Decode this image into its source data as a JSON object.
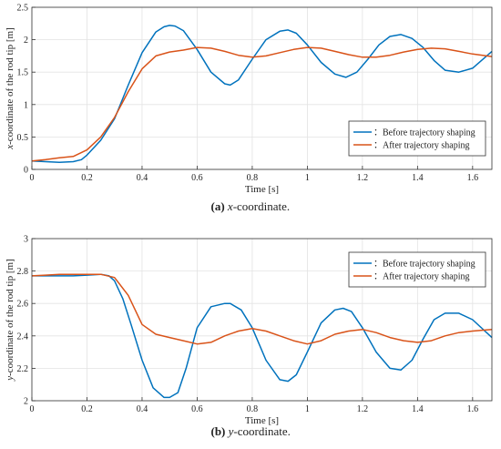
{
  "chart_data": [
    {
      "type": "line",
      "caption": {
        "tag": "(a)",
        "var": "x",
        "rest": "-coordinate."
      },
      "xlabel": "Time [s]",
      "ylabel_var": "x",
      "ylabel_rest": "-coordinate of the rod tip [m]",
      "xlim": [
        0,
        1.67
      ],
      "ylim": [
        0,
        2.5
      ],
      "xticks": [
        0,
        0.2,
        0.4,
        0.6,
        0.8,
        1,
        1.2,
        1.4,
        1.6
      ],
      "xtick_labels": [
        "0",
        "0.2",
        "0.4",
        "0.6",
        "0.8",
        "1",
        "1.2",
        "1.4",
        "1.6"
      ],
      "yticks": [
        0,
        0.5,
        1,
        1.5,
        2,
        2.5
      ],
      "ytick_labels": [
        "0",
        "0.5",
        "1",
        "1.5",
        "2",
        "2.5"
      ],
      "grid": true,
      "legend_position": "bottom-right",
      "series": [
        {
          "name": "：Before trajectory shaping",
          "color": "#0072BD",
          "x": [
            0,
            0.05,
            0.1,
            0.15,
            0.18,
            0.2,
            0.25,
            0.3,
            0.35,
            0.4,
            0.45,
            0.48,
            0.5,
            0.52,
            0.55,
            0.6,
            0.65,
            0.7,
            0.72,
            0.75,
            0.8,
            0.85,
            0.9,
            0.93,
            0.96,
            1.0,
            1.05,
            1.1,
            1.14,
            1.18,
            1.22,
            1.26,
            1.3,
            1.34,
            1.38,
            1.42,
            1.46,
            1.5,
            1.55,
            1.6,
            1.67
          ],
          "y": [
            0.13,
            0.12,
            0.11,
            0.12,
            0.15,
            0.22,
            0.45,
            0.78,
            1.3,
            1.8,
            2.12,
            2.2,
            2.22,
            2.21,
            2.14,
            1.85,
            1.5,
            1.32,
            1.3,
            1.38,
            1.7,
            2.0,
            2.13,
            2.15,
            2.1,
            1.92,
            1.65,
            1.47,
            1.42,
            1.5,
            1.7,
            1.92,
            2.05,
            2.08,
            2.02,
            1.88,
            1.68,
            1.53,
            1.5,
            1.56,
            1.82
          ]
        },
        {
          "name": "：After trajectory shaping",
          "color": "#D95319",
          "x": [
            0,
            0.05,
            0.1,
            0.15,
            0.2,
            0.25,
            0.3,
            0.35,
            0.4,
            0.45,
            0.5,
            0.55,
            0.6,
            0.65,
            0.7,
            0.75,
            0.8,
            0.85,
            0.9,
            0.95,
            1.0,
            1.05,
            1.1,
            1.15,
            1.2,
            1.25,
            1.3,
            1.35,
            1.4,
            1.45,
            1.5,
            1.55,
            1.6,
            1.67
          ],
          "y": [
            0.13,
            0.15,
            0.18,
            0.2,
            0.3,
            0.5,
            0.8,
            1.2,
            1.55,
            1.75,
            1.81,
            1.84,
            1.88,
            1.87,
            1.82,
            1.76,
            1.73,
            1.75,
            1.8,
            1.85,
            1.88,
            1.87,
            1.82,
            1.77,
            1.73,
            1.73,
            1.76,
            1.81,
            1.85,
            1.87,
            1.86,
            1.82,
            1.78,
            1.74
          ]
        }
      ]
    },
    {
      "type": "line",
      "caption": {
        "tag": "(b)",
        "var": "y",
        "rest": "-coordinate."
      },
      "xlabel": "Time [s]",
      "ylabel_var": "y",
      "ylabel_rest": "-coordinate of the rod tip [m]",
      "xlim": [
        0,
        1.67
      ],
      "ylim": [
        2,
        3
      ],
      "xticks": [
        0,
        0.2,
        0.4,
        0.6,
        0.8,
        1,
        1.2,
        1.4,
        1.6
      ],
      "xtick_labels": [
        "0",
        "0.2",
        "0.4",
        "0.6",
        "0.8",
        "1",
        "1.2",
        "1.4",
        "1.6"
      ],
      "yticks": [
        2,
        2.2,
        2.4,
        2.6,
        2.8,
        3
      ],
      "ytick_labels": [
        "2",
        "2.2",
        "2.4",
        "2.6",
        "2.8",
        "3"
      ],
      "grid": true,
      "legend_position": "top-right",
      "series": [
        {
          "name": "：Before trajectory shaping",
          "color": "#0072BD",
          "x": [
            0,
            0.05,
            0.1,
            0.15,
            0.2,
            0.25,
            0.28,
            0.3,
            0.33,
            0.36,
            0.4,
            0.44,
            0.48,
            0.5,
            0.53,
            0.56,
            0.6,
            0.65,
            0.7,
            0.72,
            0.76,
            0.8,
            0.85,
            0.9,
            0.93,
            0.96,
            1.0,
            1.05,
            1.1,
            1.13,
            1.16,
            1.2,
            1.25,
            1.3,
            1.34,
            1.38,
            1.42,
            1.46,
            1.5,
            1.55,
            1.6,
            1.67
          ],
          "y": [
            2.77,
            2.77,
            2.77,
            2.77,
            2.775,
            2.78,
            2.77,
            2.74,
            2.63,
            2.47,
            2.25,
            2.08,
            2.02,
            2.02,
            2.05,
            2.2,
            2.45,
            2.58,
            2.6,
            2.6,
            2.56,
            2.45,
            2.25,
            2.13,
            2.12,
            2.16,
            2.3,
            2.48,
            2.56,
            2.57,
            2.55,
            2.45,
            2.3,
            2.2,
            2.19,
            2.25,
            2.38,
            2.5,
            2.54,
            2.54,
            2.5,
            2.39
          ]
        },
        {
          "name": "：After trajectory shaping",
          "color": "#D95319",
          "x": [
            0,
            0.05,
            0.1,
            0.15,
            0.2,
            0.25,
            0.3,
            0.35,
            0.4,
            0.45,
            0.5,
            0.55,
            0.6,
            0.65,
            0.7,
            0.75,
            0.8,
            0.85,
            0.9,
            0.95,
            1.0,
            1.05,
            1.1,
            1.15,
            1.2,
            1.25,
            1.3,
            1.35,
            1.4,
            1.45,
            1.5,
            1.55,
            1.6,
            1.67
          ],
          "y": [
            2.77,
            2.775,
            2.78,
            2.78,
            2.78,
            2.78,
            2.76,
            2.65,
            2.47,
            2.41,
            2.39,
            2.37,
            2.35,
            2.36,
            2.4,
            2.43,
            2.445,
            2.43,
            2.4,
            2.37,
            2.35,
            2.37,
            2.41,
            2.43,
            2.44,
            2.42,
            2.39,
            2.37,
            2.36,
            2.37,
            2.4,
            2.42,
            2.43,
            2.44
          ]
        }
      ]
    }
  ]
}
